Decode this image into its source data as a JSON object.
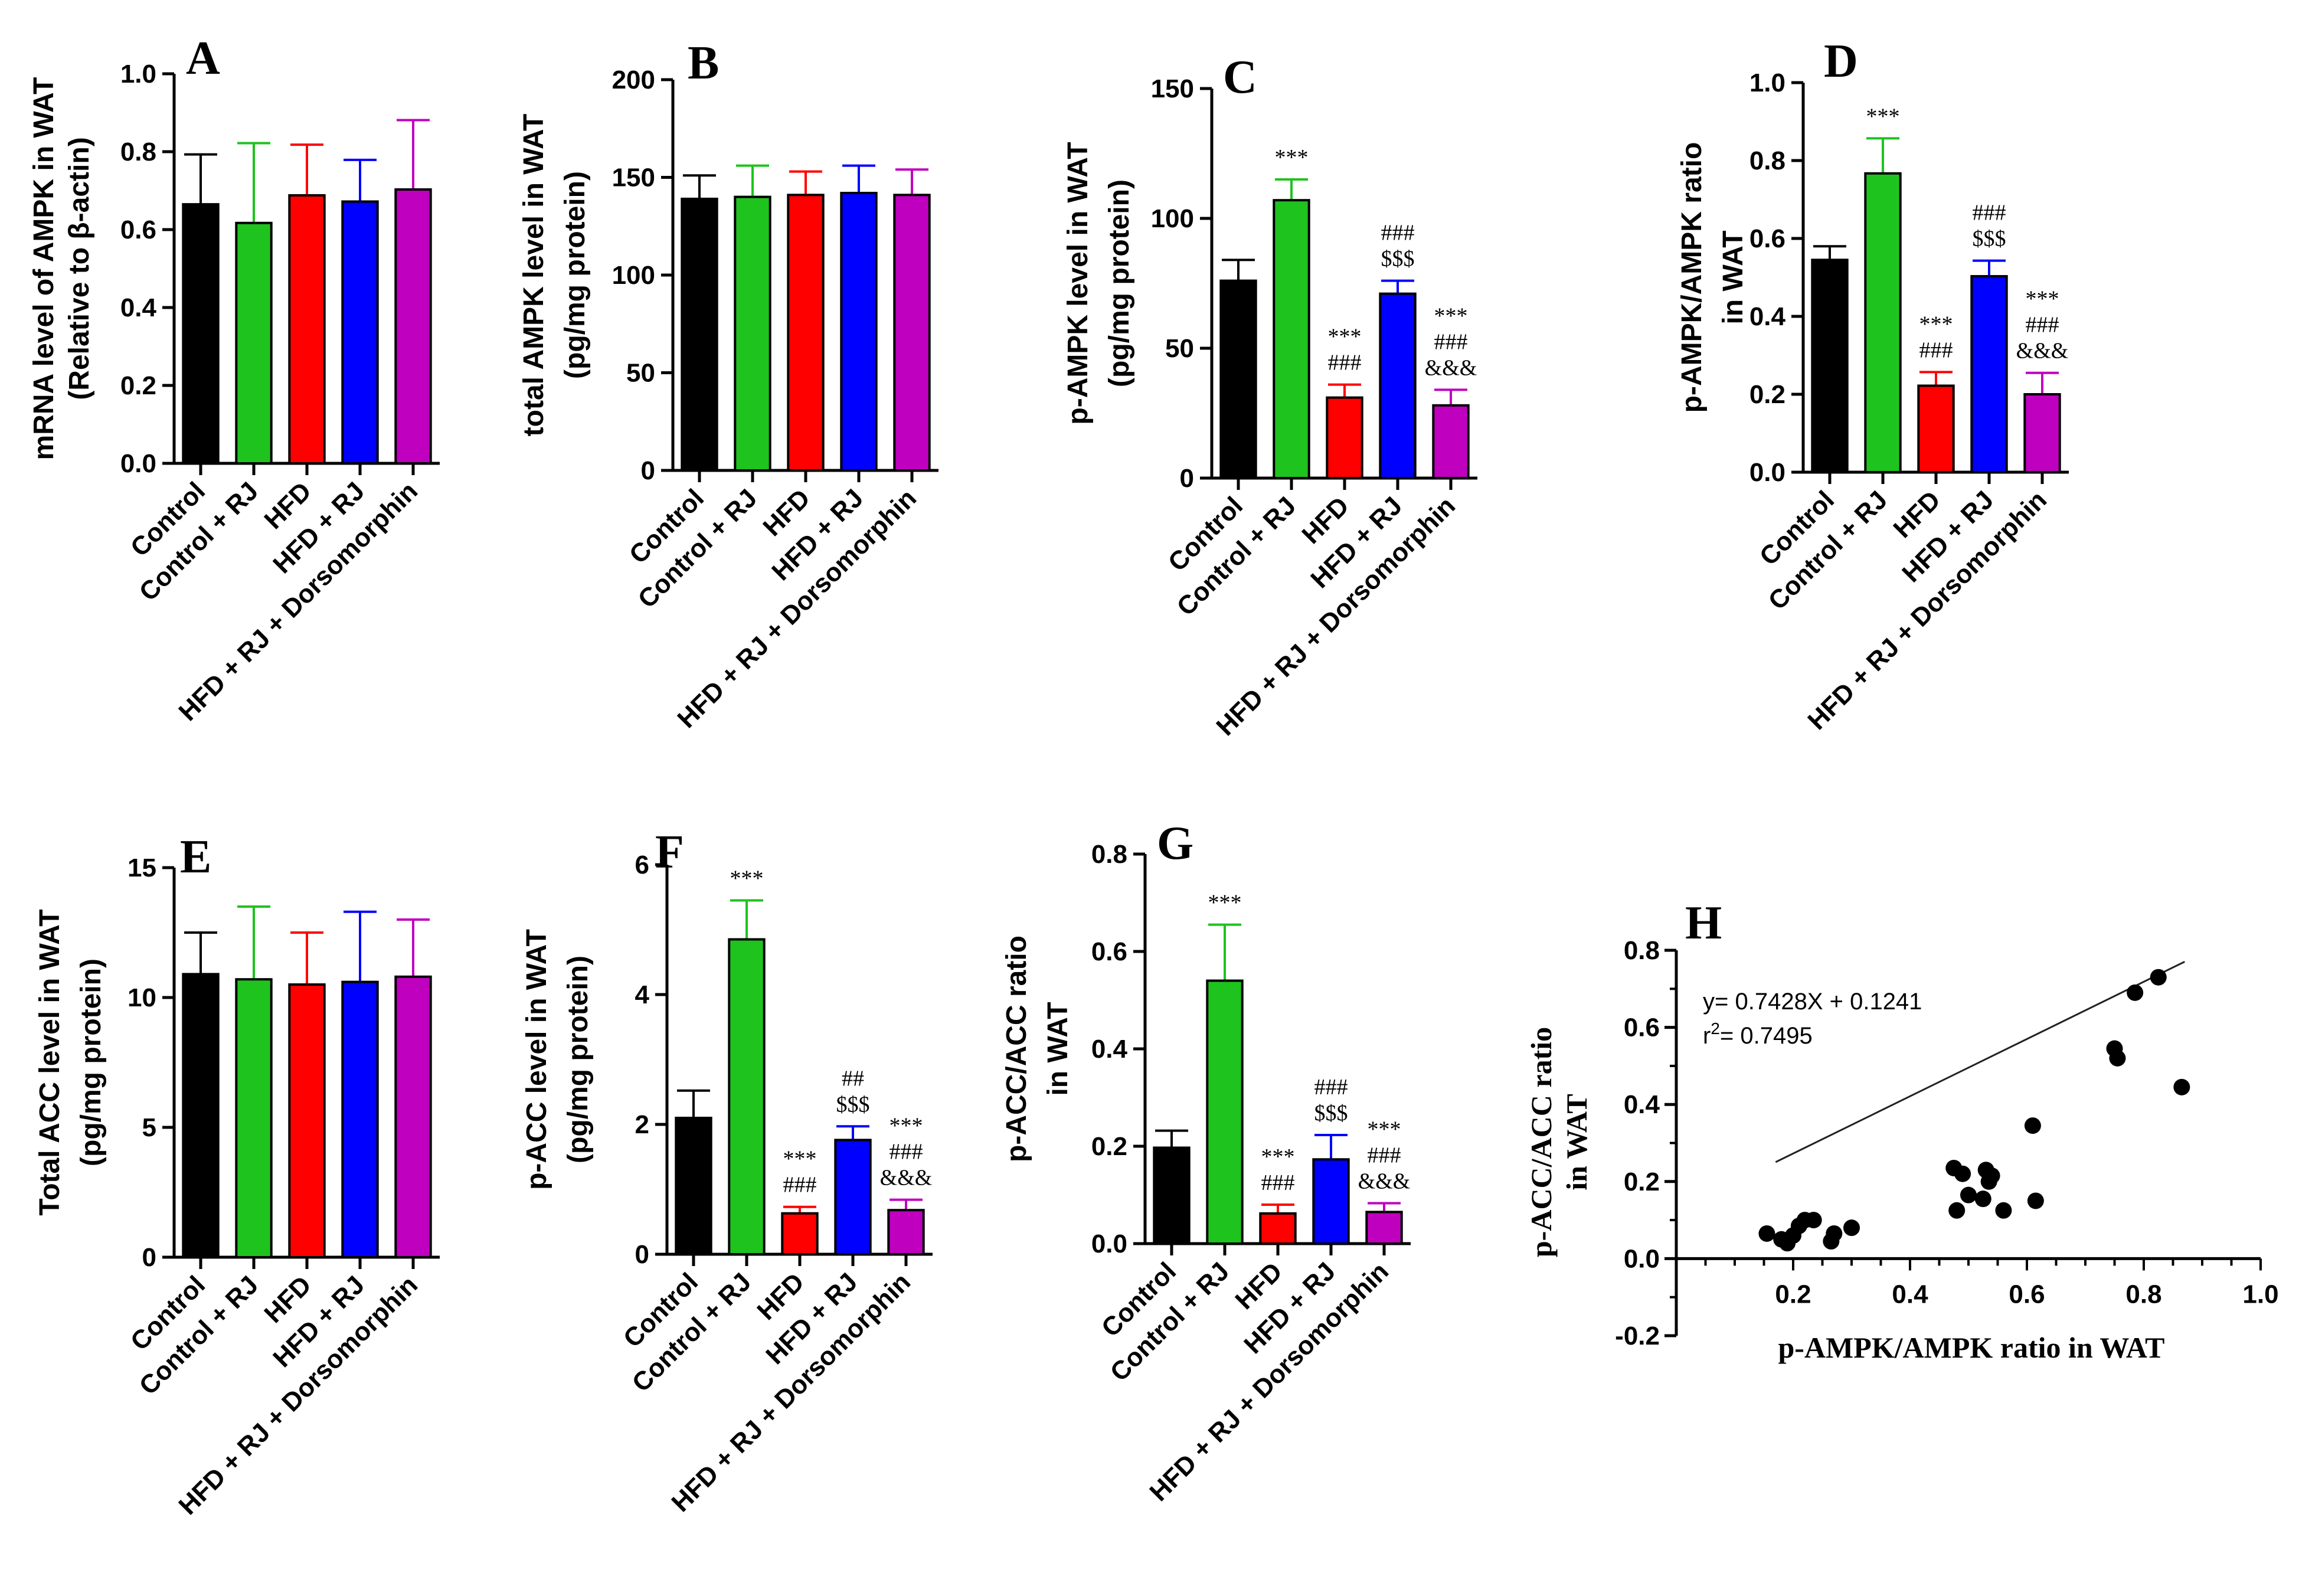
{
  "figure_title": "",
  "colors": {
    "Control": "#000000",
    "Control + RJ": "#1ec31e",
    "HFD": "#ff0000",
    "HFD + RJ": "#0000ff",
    "HFD + RJ + Dorsomorphin": "#bf00bf",
    "axis": "#000000"
  },
  "chart_data": [
    {
      "panel": "A",
      "type": "bar",
      "ylabel_lines": [
        "mRNA level of AMPK in WAT",
        "(Relative to β-actin)"
      ],
      "categories": [
        "Control",
        "Control + RJ",
        "HFD",
        "HFD + RJ",
        "HFD + RJ + Dorsomorphin"
      ],
      "values": [
        0.665,
        0.617,
        0.688,
        0.672,
        0.703
      ],
      "errors": [
        0.128,
        0.205,
        0.13,
        0.107,
        0.178
      ],
      "sig": [
        [],
        [],
        [],
        [],
        []
      ],
      "ylim": [
        0,
        1.0
      ],
      "ticks": [
        0.0,
        0.2,
        0.4,
        0.6,
        0.8,
        1.0
      ],
      "tick_labels": [
        "0.0",
        "0.2",
        "0.4",
        "0.6",
        "0.8",
        "1.0"
      ]
    },
    {
      "panel": "B",
      "type": "bar",
      "ylabel_lines": [
        "total AMPK level in WAT",
        "(pg/mg protein)"
      ],
      "categories": [
        "Control",
        "Control + RJ",
        "HFD",
        "HFD + RJ",
        "HFD + RJ + Dorsomorphin"
      ],
      "values": [
        139,
        140,
        141,
        142,
        141
      ],
      "errors": [
        12,
        16,
        12,
        14,
        13
      ],
      "sig": [
        [],
        [],
        [],
        [],
        []
      ],
      "ylim": [
        0,
        200
      ],
      "ticks": [
        0,
        50,
        100,
        150,
        200
      ],
      "tick_labels": [
        "0",
        "50",
        "100",
        "150",
        "200"
      ]
    },
    {
      "panel": "C",
      "type": "bar",
      "ylabel_lines": [
        "p-AMPK level in WAT",
        "(pg/mg protein)"
      ],
      "categories": [
        "Control",
        "Control + RJ",
        "HFD",
        "HFD + RJ",
        "HFD + RJ + Dorsomorphin"
      ],
      "values": [
        76,
        107,
        31,
        71,
        28
      ],
      "errors": [
        8,
        8,
        5,
        5,
        6
      ],
      "sig": [
        [],
        [
          "***"
        ],
        [
          "***",
          "###"
        ],
        [
          "###",
          "$$$"
        ],
        [
          "***",
          "###",
          "&&&"
        ]
      ],
      "ylim": [
        0,
        150
      ],
      "ticks": [
        0,
        50,
        100,
        150
      ],
      "tick_labels": [
        "0",
        "50",
        "100",
        "150"
      ]
    },
    {
      "panel": "D",
      "type": "bar",
      "ylabel_lines": [
        "p-AMPK/AMPK ratio",
        "in WAT"
      ],
      "categories": [
        "Control",
        "Control + RJ",
        "HFD",
        "HFD + RJ",
        "HFD + RJ + Dorsomorphin"
      ],
      "values": [
        0.545,
        0.767,
        0.222,
        0.503,
        0.2
      ],
      "errors": [
        0.035,
        0.09,
        0.035,
        0.04,
        0.055
      ],
      "sig": [
        [],
        [
          "***"
        ],
        [
          "***",
          "###"
        ],
        [
          "###",
          "$$$"
        ],
        [
          "***",
          "###",
          "&&&"
        ]
      ],
      "ylim": [
        0,
        1.0
      ],
      "ticks": [
        0.0,
        0.2,
        0.4,
        0.6,
        0.8,
        1.0
      ],
      "tick_labels": [
        "0.0",
        "0.2",
        "0.4",
        "0.6",
        "0.8",
        "1.0"
      ]
    },
    {
      "panel": "E",
      "type": "bar",
      "ylabel_lines": [
        "Total ACC level in WAT",
        "(pg/mg protein)"
      ],
      "categories": [
        "Control",
        "Control + RJ",
        "HFD",
        "HFD + RJ",
        "HFD + RJ + Dorsomorphin"
      ],
      "values": [
        10.9,
        10.7,
        10.5,
        10.6,
        10.8
      ],
      "errors": [
        1.6,
        2.8,
        2.0,
        2.7,
        2.2
      ],
      "sig": [
        [],
        [],
        [],
        [],
        []
      ],
      "ylim": [
        0,
        15
      ],
      "ticks": [
        0,
        5,
        10,
        15
      ],
      "tick_labels": [
        "0",
        "5",
        "10",
        "15"
      ]
    },
    {
      "panel": "F",
      "type": "bar",
      "ylabel_lines": [
        "p-ACC level in WAT",
        "(pg/mg protein)"
      ],
      "categories": [
        "Control",
        "Control + RJ",
        "HFD",
        "HFD + RJ",
        "HFD + RJ + Dorsomorphin"
      ],
      "values": [
        2.1,
        4.85,
        0.63,
        1.76,
        0.68
      ],
      "errors": [
        0.42,
        0.6,
        0.1,
        0.21,
        0.16
      ],
      "sig": [
        [],
        [
          "***"
        ],
        [
          "***",
          "###"
        ],
        [
          "##",
          "$$$"
        ],
        [
          "***",
          "###",
          "&&&"
        ]
      ],
      "ylim": [
        0,
        6
      ],
      "ticks": [
        0,
        2,
        4,
        6
      ],
      "tick_labels": [
        "0",
        "2",
        "4",
        "6"
      ]
    },
    {
      "panel": "G",
      "type": "bar",
      "ylabel_lines": [
        "p-ACC/ACC ratio",
        "in WAT"
      ],
      "categories": [
        "Control",
        "Control + RJ",
        "HFD",
        "HFD + RJ",
        "HFD + RJ + Dorsomorphin"
      ],
      "values": [
        0.197,
        0.54,
        0.062,
        0.173,
        0.065
      ],
      "errors": [
        0.035,
        0.115,
        0.018,
        0.05,
        0.018
      ],
      "sig": [
        [],
        [
          "***"
        ],
        [
          "***",
          "###"
        ],
        [
          "###",
          "$$$"
        ],
        [
          "***",
          "###",
          "&&&"
        ]
      ],
      "ylim": [
        0,
        0.8
      ],
      "ticks": [
        0.0,
        0.2,
        0.4,
        0.6,
        0.8
      ],
      "tick_labels": [
        "0.0",
        "0.2",
        "0.4",
        "0.6",
        "0.8"
      ]
    },
    {
      "panel": "H",
      "type": "scatter",
      "xlabel": "p-AMPK/AMPK ratio in  WAT",
      "ylabel_lines": [
        "p-ACC/ACC ratio",
        "in WAT"
      ],
      "equation": "y= 0.7428X + 0.1241",
      "r2_prefix": "r",
      "r2_exp": "2",
      "r2_value": "= 0.7495",
      "slope": 0.7428,
      "intercept": 0.1241,
      "fit_range": [
        0.17,
        0.87
      ],
      "xlim": [
        0,
        1.0
      ],
      "ylim": [
        -0.2,
        0.8
      ],
      "xticks": [
        0.2,
        0.4,
        0.6,
        0.8,
        1.0
      ],
      "xtick_labels": [
        "0.2",
        "0.4",
        "0.6",
        "0.8",
        "1.0"
      ],
      "yticks": [
        -0.2,
        0.0,
        0.2,
        0.4,
        0.6,
        0.8
      ],
      "ytick_labels": [
        "-0.2",
        "0.0",
        "0.2",
        "0.4",
        "0.6",
        "0.8"
      ],
      "points": [
        [
          0.155,
          0.065
        ],
        [
          0.18,
          0.05
        ],
        [
          0.19,
          0.04
        ],
        [
          0.2,
          0.06
        ],
        [
          0.21,
          0.085
        ],
        [
          0.22,
          0.1
        ],
        [
          0.235,
          0.1
        ],
        [
          0.265,
          0.045
        ],
        [
          0.27,
          0.065
        ],
        [
          0.3,
          0.08
        ],
        [
          0.475,
          0.235
        ],
        [
          0.48,
          0.125
        ],
        [
          0.49,
          0.22
        ],
        [
          0.5,
          0.165
        ],
        [
          0.525,
          0.155
        ],
        [
          0.53,
          0.23
        ],
        [
          0.535,
          0.2
        ],
        [
          0.54,
          0.215
        ],
        [
          0.56,
          0.125
        ],
        [
          0.61,
          0.345
        ],
        [
          0.615,
          0.15
        ],
        [
          0.75,
          0.545
        ],
        [
          0.755,
          0.52
        ],
        [
          0.785,
          0.69
        ],
        [
          0.825,
          0.73
        ],
        [
          0.865,
          0.445
        ]
      ]
    }
  ]
}
